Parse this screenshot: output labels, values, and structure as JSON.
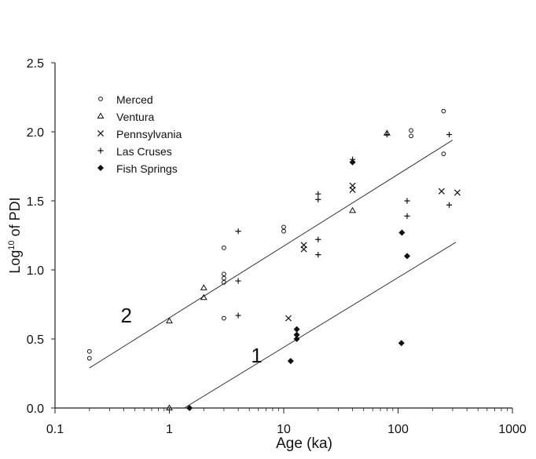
{
  "chart_data": {
    "type": "scatter",
    "title": "",
    "xlabel": "Age (ka)",
    "ylabel_main": "Log",
    "ylabel_sup": "10",
    "ylabel_rest": " of PDI",
    "x_scale": "log",
    "xlim": [
      0.1,
      1000
    ],
    "ylim": [
      0.0,
      2.5
    ],
    "x_ticks": [
      "0.1",
      "1",
      "10",
      "100",
      "1000"
    ],
    "y_ticks": [
      "0.0",
      "0.5",
      "1.0",
      "1.5",
      "2.0",
      "2.5"
    ],
    "x_tick_values": [
      0.1,
      1,
      10,
      100,
      1000
    ],
    "y_tick_values": [
      0.0,
      0.5,
      1.0,
      1.5,
      2.0,
      2.5
    ],
    "grid": false,
    "legend_position": "top-left",
    "series": [
      {
        "name": "Merced",
        "marker": "circle",
        "points": [
          [
            0.2,
            0.41
          ],
          [
            0.2,
            0.36
          ],
          [
            3,
            1.16
          ],
          [
            3,
            0.97
          ],
          [
            3,
            0.94
          ],
          [
            3,
            0.91
          ],
          [
            3,
            0.65
          ],
          [
            10,
            1.31
          ],
          [
            10,
            1.28
          ],
          [
            130,
            2.01
          ],
          [
            130,
            1.97
          ],
          [
            250,
            2.15
          ],
          [
            250,
            1.84
          ]
        ]
      },
      {
        "name": "Ventura",
        "marker": "triangle",
        "points": [
          [
            1,
            0.63
          ],
          [
            1,
            0.0
          ],
          [
            2,
            0.87
          ],
          [
            2,
            0.8
          ],
          [
            40,
            1.43
          ],
          [
            80,
            1.99
          ]
        ]
      },
      {
        "name": "Pennsylvania",
        "marker": "x",
        "points": [
          [
            11,
            0.65
          ],
          [
            15,
            1.18
          ],
          [
            15,
            1.15
          ],
          [
            40,
            1.61
          ],
          [
            40,
            1.58
          ],
          [
            240,
            1.57
          ],
          [
            330,
            1.56
          ]
        ]
      },
      {
        "name": "Las Cruses",
        "marker": "plus",
        "points": [
          [
            4,
            1.28
          ],
          [
            4,
            0.92
          ],
          [
            4,
            0.67
          ],
          [
            20,
            1.55
          ],
          [
            20,
            1.51
          ],
          [
            20,
            1.22
          ],
          [
            20,
            1.11
          ],
          [
            40,
            1.8
          ],
          [
            80,
            1.98
          ],
          [
            120,
            1.5
          ],
          [
            120,
            1.39
          ],
          [
            280,
            1.98
          ],
          [
            280,
            1.47
          ]
        ]
      },
      {
        "name": "Fish Springs",
        "marker": "diamond",
        "points": [
          [
            1.5,
            0.0
          ],
          [
            11.5,
            0.34
          ],
          [
            13,
            0.57
          ],
          [
            13,
            0.53
          ],
          [
            13,
            0.5
          ],
          [
            40,
            1.78
          ],
          [
            108,
            1.27
          ],
          [
            120,
            1.1
          ],
          [
            107,
            0.47
          ]
        ]
      }
    ],
    "lines": [
      {
        "label": "2",
        "from": [
          0.2,
          0.29
        ],
        "to": [
          300,
          1.94
        ],
        "label_at": [
          0.42,
          0.62
        ]
      },
      {
        "label": "1",
        "from": [
          1.35,
          0.0
        ],
        "to": [
          320,
          1.2
        ],
        "label_at": [
          5.8,
          0.33
        ]
      }
    ]
  }
}
